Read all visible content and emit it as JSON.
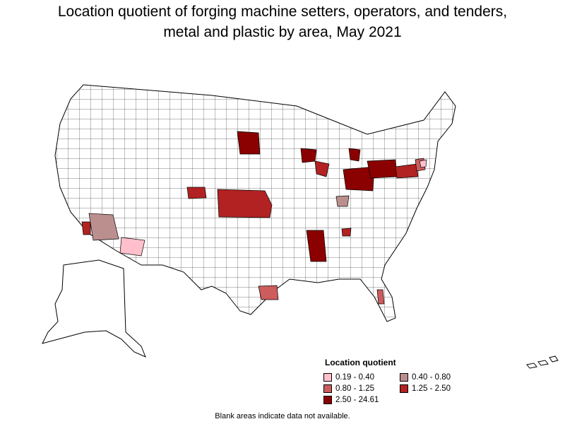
{
  "title_lines": [
    "Location quotient of forging machine setters, operators, and tenders,",
    "metal and plastic by area, May 2021"
  ],
  "legend": {
    "title": "Location quotient",
    "items": [
      {
        "label": "0.19 - 0.40",
        "color": "#ffc0cb"
      },
      {
        "label": "0.40 - 0.80",
        "color": "#bc8f8f"
      },
      {
        "label": "0.80 - 1.25",
        "color": "#cd5c5c"
      },
      {
        "label": "1.25 - 2.50",
        "color": "#b22222"
      },
      {
        "label": "2.50 - 24.61",
        "color": "#8b0000"
      }
    ]
  },
  "footnote": "Blank areas indicate data not available.",
  "colors": {
    "border": "#000000",
    "blank": "#ffffff"
  }
}
